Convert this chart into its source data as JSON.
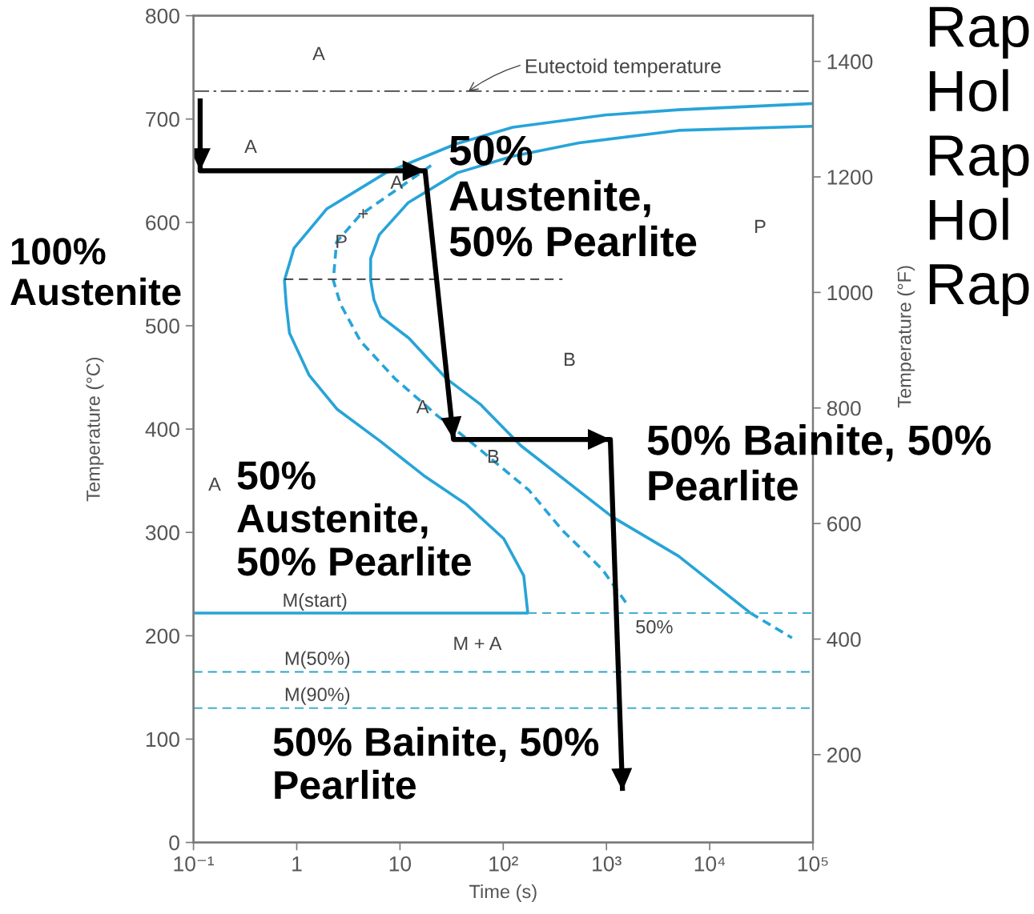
{
  "chart_data": {
    "type": "line",
    "xlabel": "Time (s)",
    "ylabel": "Temperature (°C)",
    "y2label": "Temperature (°F)",
    "log": "x",
    "xlim": [
      0.1,
      100000
    ],
    "xticks": [
      {
        "value": 0.1,
        "label": "10⁻¹"
      },
      1,
      10,
      {
        "value": 100,
        "label": "10²"
      },
      {
        "value": 1000,
        "label": "10³"
      },
      {
        "value": 10000,
        "label": "10⁴"
      },
      {
        "value": 100000,
        "label": "10⁵"
      }
    ],
    "ylim": [
      0,
      800
    ],
    "yticks": [
      0,
      100,
      200,
      300,
      400,
      500,
      600,
      700,
      800
    ],
    "y2lim": [
      48,
      1479
    ],
    "y2ticks": [
      200,
      400,
      600,
      800,
      1000,
      1200,
      1400
    ],
    "series": [
      {
        "color": "#27a4d8",
        "line_style": "solid",
        "x": [
          100000,
          5000,
          1000,
          124,
          35,
          7.3,
          1.95,
          0.94,
          0.76,
          0.79,
          0.85,
          1.32,
          2.47,
          6.5,
          17,
          44,
          101,
          158,
          173,
          0.1
        ],
        "values": [
          715,
          709,
          704,
          692,
          676,
          648,
          613,
          575,
          544,
          521,
          493,
          452,
          419,
          388,
          355,
          327,
          294,
          258,
          222,
          222
        ]
      },
      {
        "name": "50%",
        "color": "#27a4d8",
        "line_style": "dashed",
        "x": [
          20,
          8.5,
          4.1,
          2.43,
          2.26,
          2.65,
          4.15,
          8.9,
          23,
          44,
          177,
          374,
          915,
          1650
        ],
        "values": [
          655,
          629,
          607,
          581,
          544,
          521,
          485,
          449,
          413,
          391,
          341,
          302,
          264,
          228
        ]
      },
      {
        "color": "#27a4d8",
        "line_style": "solid",
        "x": [
          100000,
          5000,
          543,
          123,
          36,
          12,
          6.3,
          5.2,
          5.2,
          5.6,
          6.5,
          12.2,
          28,
          60,
          148,
          1140,
          5000,
          24800
        ],
        "values": [
          693,
          689,
          677,
          664,
          648,
          619,
          588,
          565,
          544,
          525,
          509,
          488,
          449,
          424,
          384,
          315,
          277,
          222
        ]
      },
      {
        "color": "#27a4d8",
        "line_style": "dashed",
        "x": [
          24800,
          62700
        ],
        "values": [
          222,
          198
        ]
      },
      {
        "color": "#3fb0cf",
        "line_style": "dashed",
        "x": [
          173,
          100000
        ],
        "values": [
          222,
          222
        ]
      },
      {
        "color": "#333333",
        "line_style": "dashed",
        "x": [
          0.76,
          375
        ],
        "values": [
          545,
          545
        ]
      },
      {
        "color": "#000000",
        "line_style": "solid",
        "x": [
          0.116,
          0.116,
          17.5,
          33,
          1090,
          1430
        ],
        "values": [
          720,
          650,
          650,
          390,
          390,
          50
        ]
      }
    ],
    "ref_lines": [
      {
        "axis": "y",
        "value": 727,
        "label": null,
        "color": "#444444",
        "line_style": "dashdot"
      },
      {
        "axis": "y",
        "value": 165,
        "label": "M(50%)",
        "color": "#2ca6c8",
        "line_style": "dashed"
      },
      {
        "axis": "y",
        "value": 130,
        "label": "M(90%)",
        "color": "#3fb0cf",
        "line_style": "dashed"
      }
    ],
    "annotations": [
      "100%\nAustenite",
      "50%\nAustenite,\n50% Pearlite",
      "50%\nAustenite,\n50% Pearlite",
      "50% Bainite, 50%\nPearlite",
      "50% Bainite, 50%\nPearlite",
      "Rap\nHol\nRap\nHol\nRap",
      "A",
      "A",
      "P",
      "B",
      "A",
      "M + A",
      {
        "text": "Eutectoid temperature",
        "x": 46,
        "y": 727
      },
      {
        "text": "M(start)",
        "x": 1.5,
        "y": 222
      },
      {
        "text": "A",
        "x": 8.5,
        "y": 628
      },
      {
        "text": "+",
        "x": 4.4,
        "y": 607
      },
      {
        "text": "P",
        "x": 2.7,
        "y": 580
      },
      {
        "text": "A",
        "x": 19.8,
        "y": 417
      },
      {
        "text": "B",
        "x": 80,
        "y": 372
      }
    ]
  }
}
